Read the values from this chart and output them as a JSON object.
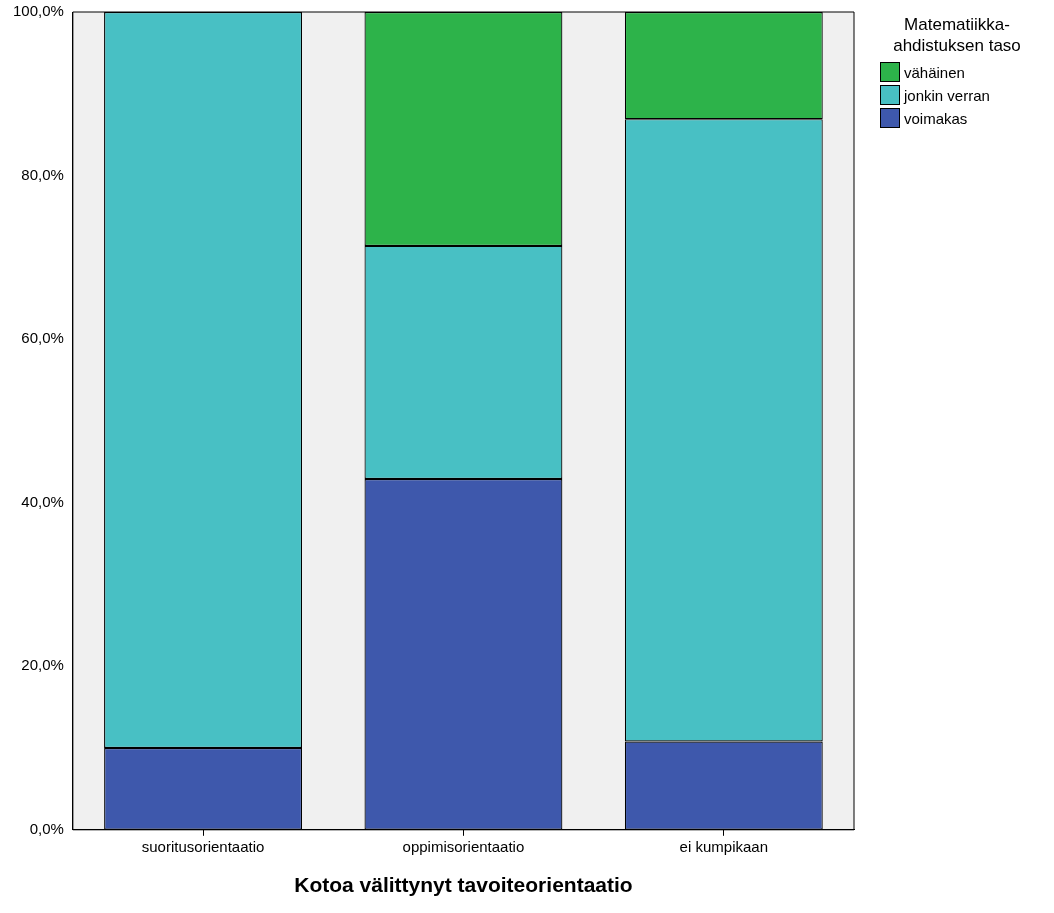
{
  "chart_data": {
    "type": "bar",
    "stacked": true,
    "xlabel": "Kotoa välittynyt tavoiteorientaatio",
    "legend_title": "Matematiikka-ahdistuksen taso",
    "legend": "top right",
    "grid": false,
    "categories": [
      "suoritusorientaatio",
      "oppimisorientaatio",
      "ei kumpikaan"
    ],
    "ylim": [
      0,
      100
    ],
    "yticks": [
      {
        "value": 0,
        "label": "0,0%"
      },
      {
        "value": 20,
        "label": "20,0%"
      },
      {
        "value": 40,
        "label": "40,0%"
      },
      {
        "value": 60,
        "label": "60,0%"
      },
      {
        "value": 80,
        "label": "80,0%"
      },
      {
        "value": 100,
        "label": "100,0%"
      }
    ],
    "series": [
      {
        "name": "voimakas",
        "color": "#3e58ac",
        "values": [
          10.0,
          42.9,
          10.8
        ]
      },
      {
        "name": "jonkin verran",
        "color": "#48c0c4",
        "values": [
          90.0,
          28.5,
          76.1
        ]
      },
      {
        "name": "vähäinen",
        "color": "#2db34a",
        "values": [
          0,
          28.6,
          13.1
        ]
      }
    ]
  }
}
